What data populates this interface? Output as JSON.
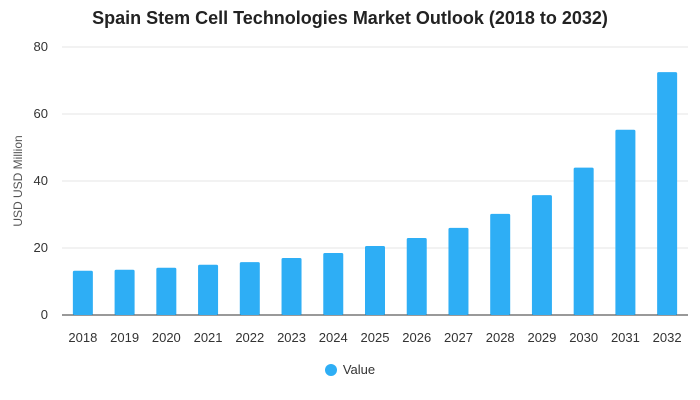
{
  "chart_data": {
    "type": "bar",
    "title": "Spain Stem Cell Technologies Market Outlook (2018 to 2032)",
    "xlabel": "",
    "ylabel": "USD USD Million",
    "ylim": [
      0,
      80
    ],
    "yticks": [
      0,
      20,
      40,
      60,
      80
    ],
    "grid": true,
    "legend_position": "bottom",
    "categories": [
      "2018",
      "2019",
      "2020",
      "2021",
      "2022",
      "2023",
      "2024",
      "2025",
      "2026",
      "2027",
      "2028",
      "2029",
      "2030",
      "2031",
      "2032"
    ],
    "series": [
      {
        "name": "Value",
        "color": "#2eaef5",
        "values": [
          13.2,
          13.5,
          14.1,
          15.0,
          15.8,
          17.0,
          18.5,
          20.6,
          23.0,
          26.0,
          30.2,
          35.8,
          44.0,
          55.3,
          72.5
        ]
      }
    ]
  }
}
